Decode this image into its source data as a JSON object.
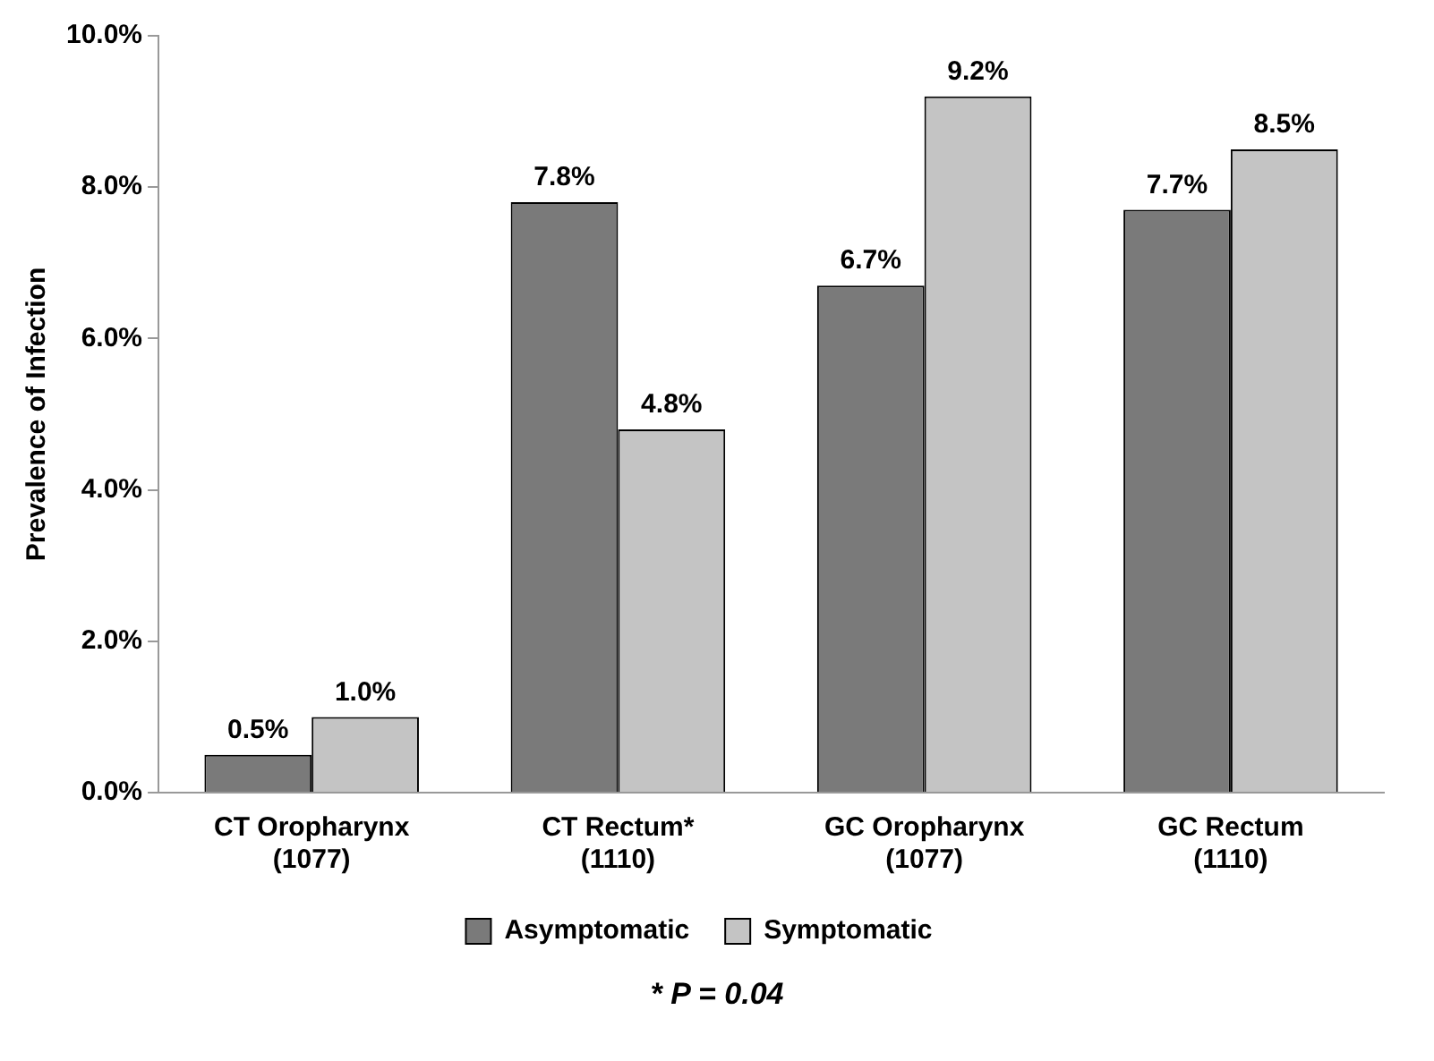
{
  "chart_data": {
    "type": "bar",
    "ylabel": "Prevalence of Infection",
    "categories": [
      "CT Oropharynx\n(1077)",
      "CT Rectum*\n(1110)",
      "GC Oropharynx\n(1077)",
      "GC Rectum\n(1110)"
    ],
    "series": [
      {
        "name": "Asymptomatic",
        "color": "#7a7a7a",
        "values": [
          0.5,
          7.8,
          6.7,
          7.7
        ],
        "value_labels": [
          "0.5%",
          "7.8%",
          "6.7%",
          "7.7%"
        ]
      },
      {
        "name": "Symptomatic",
        "color": "#c4c4c4",
        "values": [
          1.0,
          4.8,
          9.2,
          8.5
        ],
        "value_labels": [
          "1.0%",
          "4.8%",
          "9.2%",
          "8.5%"
        ]
      }
    ],
    "ylim": [
      0,
      10
    ],
    "yticks": [
      {
        "value": 0,
        "label": "0.0%"
      },
      {
        "value": 2,
        "label": "2.0%"
      },
      {
        "value": 4,
        "label": "4.0%"
      },
      {
        "value": 6,
        "label": "6.0%"
      },
      {
        "value": 8,
        "label": "8.0%"
      },
      {
        "value": 10,
        "label": "10.0%"
      }
    ],
    "grid": false,
    "legend": "bottom",
    "annotations": [
      "* P = 0.04"
    ]
  }
}
